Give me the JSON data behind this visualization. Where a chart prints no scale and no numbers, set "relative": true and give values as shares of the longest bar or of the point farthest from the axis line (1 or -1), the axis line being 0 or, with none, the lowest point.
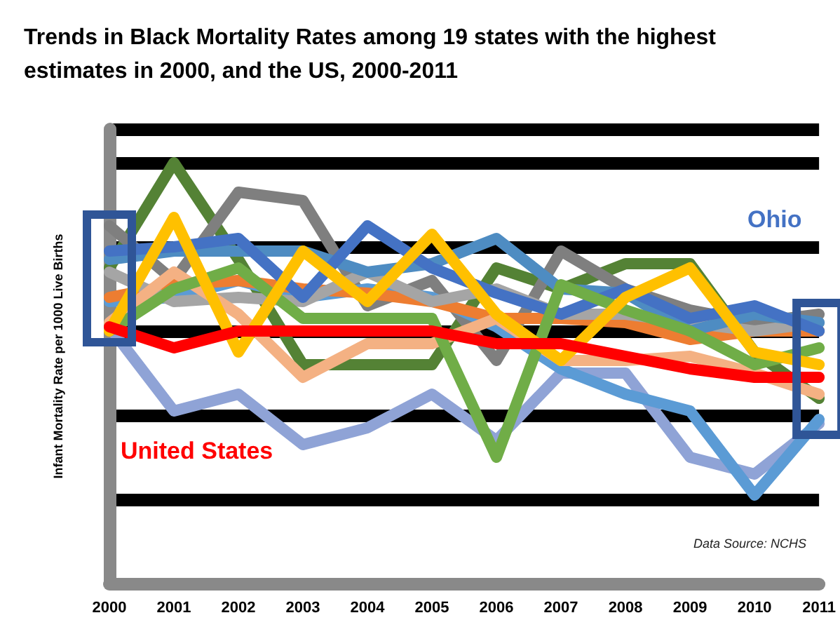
{
  "chart_data": {
    "type": "line",
    "title": "Trends in Black Mortality Rates among 19 states with the highest estimates in 2000, and the US, 2000-2011",
    "ylabel": "Infant Mortality Rate per 1000 Live Births",
    "annotations": [
      "Data Source: NCHS"
    ],
    "relative": true,
    "grid": "y",
    "legend": false,
    "marker": "none",
    "line_style": "solid",
    "categories": [
      "2000",
      "2001",
      "2002",
      "2003",
      "2004",
      "2005",
      "2006",
      "2007",
      "2008",
      "2009",
      "2010",
      "2011"
    ],
    "series": [
      {
        "color": "#8fa3d6",
        "values": [
          0.61,
          0.41,
          0.45,
          0.33,
          0.37,
          0.45,
          0.34,
          0.5,
          0.5,
          0.3,
          0.26,
          0.38
        ]
      },
      {
        "color": "#548235",
        "values": [
          0.75,
          1.0,
          0.77,
          0.52,
          0.52,
          0.52,
          0.75,
          0.7,
          0.76,
          0.76,
          0.55,
          0.44
        ]
      },
      {
        "color": "#7f7f7f",
        "values": [
          0.85,
          0.72,
          0.93,
          0.91,
          0.66,
          0.72,
          0.53,
          0.79,
          0.7,
          0.65,
          0.62,
          0.64
        ]
      },
      {
        "color": "#5b9bd5",
        "values": [
          0.67,
          0.68,
          0.72,
          0.68,
          0.7,
          0.68,
          0.61,
          0.51,
          0.45,
          0.41,
          0.21,
          0.39
        ]
      },
      {
        "color": "#ed7d31",
        "values": [
          0.68,
          0.71,
          0.72,
          0.7,
          0.69,
          0.67,
          0.63,
          0.63,
          0.62,
          0.58,
          0.6,
          0.6
        ]
      },
      {
        "color": "#a5a5a5",
        "values": [
          0.74,
          0.67,
          0.68,
          0.67,
          0.74,
          0.67,
          0.7,
          0.64,
          0.64,
          0.62,
          0.6,
          0.62
        ]
      },
      {
        "color": "#4e8cc2",
        "values": [
          0.77,
          0.79,
          0.79,
          0.79,
          0.74,
          0.76,
          0.82,
          0.7,
          0.69,
          0.6,
          0.64,
          0.62
        ]
      },
      {
        "name": "Ohio",
        "color": "#4472c4",
        "values": [
          0.79,
          0.8,
          0.82,
          0.68,
          0.85,
          0.75,
          0.69,
          0.64,
          0.7,
          0.63,
          0.66,
          0.6
        ]
      },
      {
        "color": "#f4b183",
        "values": [
          0.62,
          0.74,
          0.64,
          0.49,
          0.57,
          0.57,
          0.63,
          0.53,
          0.53,
          0.54,
          0.5,
          0.45
        ]
      },
      {
        "color": "#70ad47",
        "values": [
          0.6,
          0.7,
          0.75,
          0.63,
          0.63,
          0.63,
          0.3,
          0.71,
          0.65,
          0.6,
          0.52,
          0.56
        ]
      },
      {
        "color": "#ffc000",
        "values": [
          0.6,
          0.87,
          0.55,
          0.79,
          0.67,
          0.83,
          0.64,
          0.53,
          0.68,
          0.75,
          0.55,
          0.52
        ]
      },
      {
        "name": "United States",
        "color": "#ff0000",
        "values": [
          0.61,
          0.56,
          0.6,
          0.6,
          0.6,
          0.6,
          0.57,
          0.57,
          0.54,
          0.51,
          0.49,
          0.49
        ]
      }
    ]
  }
}
